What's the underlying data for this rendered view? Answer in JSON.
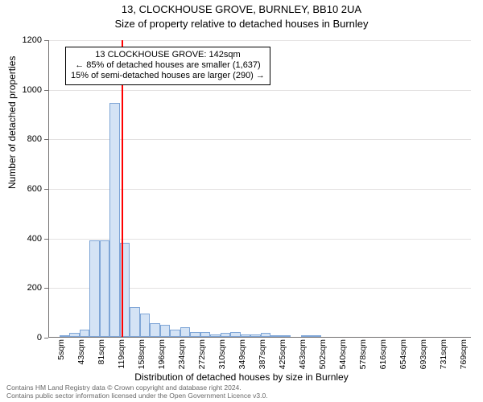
{
  "title": "13, CLOCKHOUSE GROVE, BURNLEY, BB10 2UA",
  "subtitle": "Size of property relative to detached houses in Burnley",
  "y_axis": {
    "label": "Number of detached properties",
    "min": 0,
    "max": 1200,
    "step": 200
  },
  "x_axis": {
    "label": "Distribution of detached houses by size in Burnley",
    "tick_labels": [
      "5sqm",
      "43sqm",
      "81sqm",
      "119sqm",
      "158sqm",
      "196sqm",
      "234sqm",
      "272sqm",
      "310sqm",
      "349sqm",
      "387sqm",
      "425sqm",
      "463sqm",
      "502sqm",
      "540sqm",
      "578sqm",
      "616sqm",
      "654sqm",
      "693sqm",
      "731sqm",
      "769sqm"
    ],
    "tick_every": 2
  },
  "bars": {
    "values": [
      0,
      5,
      15,
      30,
      390,
      390,
      945,
      380,
      120,
      95,
      55,
      50,
      30,
      40,
      20,
      20,
      10,
      15,
      20,
      10,
      10,
      15,
      5,
      5,
      0,
      5,
      5,
      0,
      0,
      0,
      0,
      0,
      0,
      0,
      0,
      0,
      0,
      0,
      0,
      0,
      0,
      0
    ],
    "fill": "#d4e3f5",
    "stroke": "#7ea5d6",
    "width_ratio": 1.0
  },
  "marker": {
    "value": 142,
    "x_min": 5,
    "x_max": 802,
    "color": "#ff0000"
  },
  "annotation": {
    "line1": "13 CLOCKHOUSE GROVE: 142sqm",
    "line2": "← 85% of detached houses are smaller (1,637)",
    "line3": "15% of semi-detached houses are larger (290) →"
  },
  "attribution": {
    "line1": "Contains HM Land Registry data © Crown copyright and database right 2024.",
    "line2": "Contains public sector information licensed under the Open Government Licence v3.0."
  },
  "style": {
    "title_fontsize": 13,
    "subtitle_fontsize": 13,
    "axis_label_fontsize": 12,
    "tick_fontsize": 11,
    "xtick_fontsize": 10.5,
    "annotation_fontsize": 11,
    "attrib_fontsize": 8.5,
    "grid_color": "#e3e1e1",
    "axis_color": "#726f6f",
    "background": "#ffffff",
    "text_color": "#000000",
    "attrib_color": "#696969"
  }
}
